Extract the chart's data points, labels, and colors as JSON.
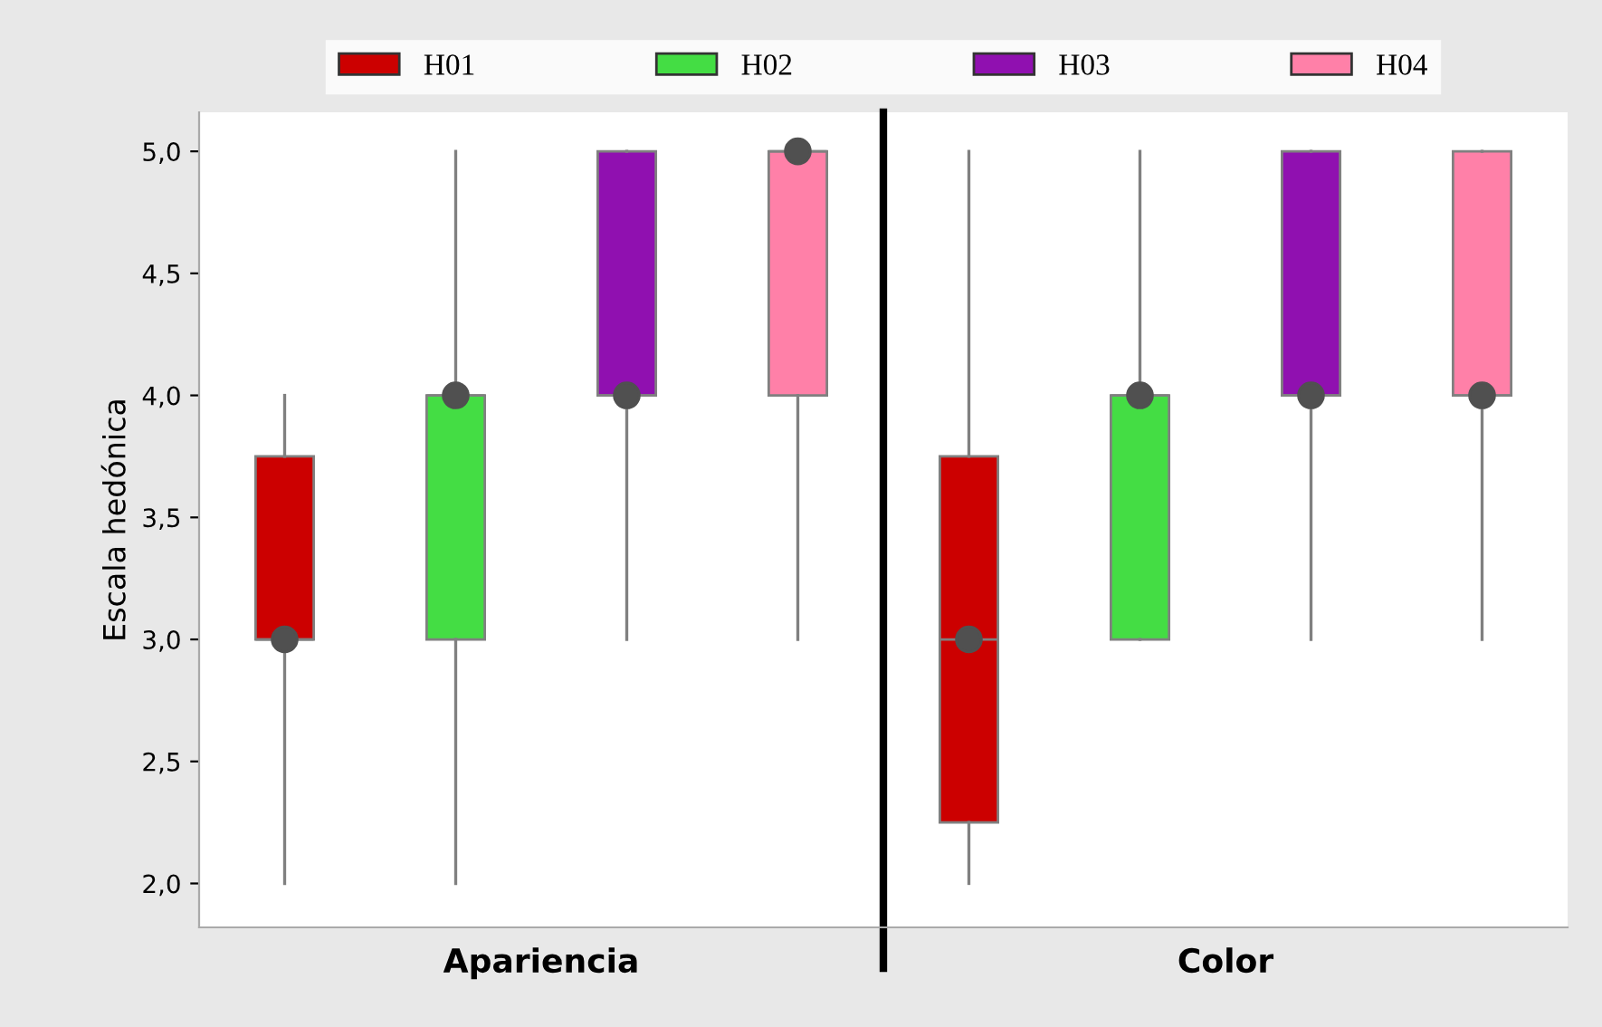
{
  "chart_data": {
    "type": "box",
    "ylabel": "Escala hedónica",
    "categories": [
      "Apariencia",
      "Color"
    ],
    "ylim": [
      1.82,
      5.16
    ],
    "yticks": [
      {
        "value": 2.0,
        "label": "2,0"
      },
      {
        "value": 2.5,
        "label": "2,5"
      },
      {
        "value": 3.0,
        "label": "3,0"
      },
      {
        "value": 3.5,
        "label": "3,5"
      },
      {
        "value": 4.0,
        "label": "4,0"
      },
      {
        "value": 4.5,
        "label": "4,5"
      },
      {
        "value": 5.0,
        "label": "5,0"
      }
    ],
    "legend": "top",
    "grid": false,
    "series": [
      {
        "name": "H01",
        "color": "#cc0000",
        "boxes": [
          {
            "low": 2,
            "q1": 3,
            "median": 3,
            "q3": 3.75,
            "high": 4,
            "mean": 3
          },
          {
            "low": 2,
            "q1": 2.25,
            "median": 3,
            "q3": 3.75,
            "high": 5,
            "mean": 3
          }
        ]
      },
      {
        "name": "H02",
        "color": "#44dd44",
        "boxes": [
          {
            "low": 2,
            "q1": 3,
            "median": 4,
            "q3": 4,
            "high": 5,
            "mean": 4
          },
          {
            "low": 3,
            "q1": 3,
            "median": 4,
            "q3": 4,
            "high": 5,
            "mean": 4
          }
        ]
      },
      {
        "name": "H03",
        "color": "#9010b0",
        "boxes": [
          {
            "low": 3,
            "q1": 4,
            "median": 4,
            "q3": 5,
            "high": 5,
            "mean": 4
          },
          {
            "low": 3,
            "q1": 4,
            "median": 4,
            "q3": 5,
            "high": 5,
            "mean": 4
          }
        ]
      },
      {
        "name": "H04",
        "color": "#ff80a8",
        "boxes": [
          {
            "low": 3,
            "q1": 4,
            "median": 5,
            "q3": 5,
            "high": 5,
            "mean": 5
          },
          {
            "low": 3,
            "q1": 4,
            "median": 4,
            "q3": 5,
            "high": 5,
            "mean": 4
          }
        ]
      }
    ]
  }
}
